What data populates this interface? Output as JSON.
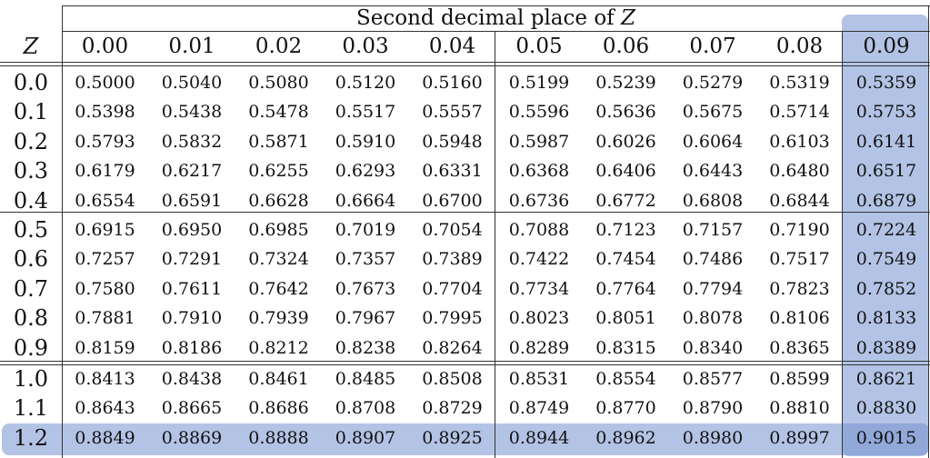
{
  "table": {
    "title": "Second decimal place of ",
    "title_var": "Z",
    "row_header": "Z",
    "columns": [
      "0.00",
      "0.01",
      "0.02",
      "0.03",
      "0.04",
      "0.05",
      "0.06",
      "0.07",
      "0.08",
      "0.09"
    ],
    "rows": [
      {
        "z": "0.0",
        "values": [
          "0.5000",
          "0.5040",
          "0.5080",
          "0.5120",
          "0.5160",
          "0.5199",
          "0.5239",
          "0.5279",
          "0.5319",
          "0.5359"
        ]
      },
      {
        "z": "0.1",
        "values": [
          "0.5398",
          "0.5438",
          "0.5478",
          "0.5517",
          "0.5557",
          "0.5596",
          "0.5636",
          "0.5675",
          "0.5714",
          "0.5753"
        ]
      },
      {
        "z": "0.2",
        "values": [
          "0.5793",
          "0.5832",
          "0.5871",
          "0.5910",
          "0.5948",
          "0.5987",
          "0.6026",
          "0.6064",
          "0.6103",
          "0.6141"
        ]
      },
      {
        "z": "0.3",
        "values": [
          "0.6179",
          "0.6217",
          "0.6255",
          "0.6293",
          "0.6331",
          "0.6368",
          "0.6406",
          "0.6443",
          "0.6480",
          "0.6517"
        ]
      },
      {
        "z": "0.4",
        "values": [
          "0.6554",
          "0.6591",
          "0.6628",
          "0.6664",
          "0.6700",
          "0.6736",
          "0.6772",
          "0.6808",
          "0.6844",
          "0.6879"
        ]
      },
      {
        "z": "0.5",
        "values": [
          "0.6915",
          "0.6950",
          "0.6985",
          "0.7019",
          "0.7054",
          "0.7088",
          "0.7123",
          "0.7157",
          "0.7190",
          "0.7224"
        ]
      },
      {
        "z": "0.6",
        "values": [
          "0.7257",
          "0.7291",
          "0.7324",
          "0.7357",
          "0.7389",
          "0.7422",
          "0.7454",
          "0.7486",
          "0.7517",
          "0.7549"
        ]
      },
      {
        "z": "0.7",
        "values": [
          "0.7580",
          "0.7611",
          "0.7642",
          "0.7673",
          "0.7704",
          "0.7734",
          "0.7764",
          "0.7794",
          "0.7823",
          "0.7852"
        ]
      },
      {
        "z": "0.8",
        "values": [
          "0.7881",
          "0.7910",
          "0.7939",
          "0.7967",
          "0.7995",
          "0.8023",
          "0.8051",
          "0.8078",
          "0.8106",
          "0.8133"
        ]
      },
      {
        "z": "0.9",
        "values": [
          "0.8159",
          "0.8186",
          "0.8212",
          "0.8238",
          "0.8264",
          "0.8289",
          "0.8315",
          "0.8340",
          "0.8365",
          "0.8389"
        ]
      },
      {
        "z": "1.0",
        "values": [
          "0.8413",
          "0.8438",
          "0.8461",
          "0.8485",
          "0.8508",
          "0.8531",
          "0.8554",
          "0.8577",
          "0.8599",
          "0.8621"
        ]
      },
      {
        "z": "1.1",
        "values": [
          "0.8643",
          "0.8665",
          "0.8686",
          "0.8708",
          "0.8729",
          "0.8749",
          "0.8770",
          "0.8790",
          "0.8810",
          "0.8830"
        ]
      },
      {
        "z": "1.2",
        "values": [
          "0.8849",
          "0.8869",
          "0.8888",
          "0.8907",
          "0.8925",
          "0.8944",
          "0.8962",
          "0.8980",
          "0.8997",
          "0.9015"
        ]
      }
    ],
    "highlight": {
      "column": "0.09",
      "row": "1.2",
      "color": "#7491d0"
    }
  }
}
